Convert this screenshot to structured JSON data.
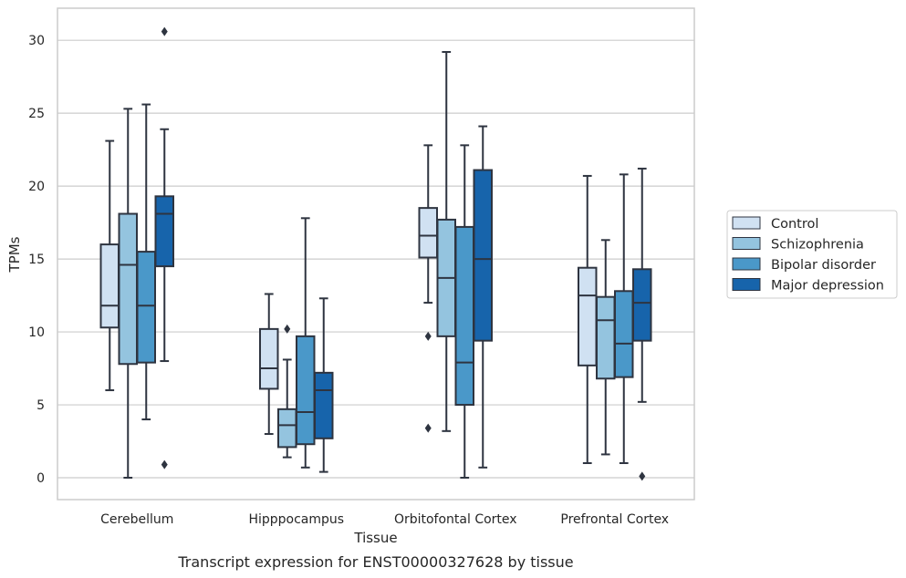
{
  "chart_data": {
    "type": "box",
    "xlabel": "Tissue",
    "ylabel": "TPMs",
    "caption": "Transcript expression for ENST00000327628 by tissue",
    "ylim": [
      -1.5,
      32.2
    ],
    "yticks": [
      0,
      5,
      10,
      15,
      20,
      25,
      30
    ],
    "grid": "horizontal",
    "legend_position": "right",
    "categories": [
      "Cerebellum",
      "Hipppocampus",
      "Orbitofontal Cortex",
      "Prefrontal Cortex"
    ],
    "series": [
      {
        "name": "Control",
        "color": "#d0e1f2",
        "boxes": [
          {
            "whislo": 6.0,
            "q1": 10.3,
            "med": 11.8,
            "q3": 16.0,
            "whishi": 23.1,
            "fliers": []
          },
          {
            "whislo": 3.0,
            "q1": 6.1,
            "med": 7.5,
            "q3": 10.2,
            "whishi": 12.6,
            "fliers": []
          },
          {
            "whislo": 12.0,
            "q1": 15.1,
            "med": 16.6,
            "q3": 18.5,
            "whishi": 22.8,
            "fliers": [
              9.7,
              3.4
            ]
          },
          {
            "whislo": 1.0,
            "q1": 7.7,
            "med": 12.5,
            "q3": 14.4,
            "whishi": 20.7,
            "fliers": []
          }
        ]
      },
      {
        "name": "Schizophrenia",
        "color": "#94c4df",
        "boxes": [
          {
            "whislo": 0.0,
            "q1": 7.8,
            "med": 14.6,
            "q3": 18.1,
            "whishi": 25.3,
            "fliers": []
          },
          {
            "whislo": 1.4,
            "q1": 2.1,
            "med": 3.6,
            "q3": 4.7,
            "whishi": 8.1,
            "fliers": [
              10.2
            ]
          },
          {
            "whislo": 3.2,
            "q1": 9.7,
            "med": 13.7,
            "q3": 17.7,
            "whishi": 29.2,
            "fliers": []
          },
          {
            "whislo": 1.6,
            "q1": 6.8,
            "med": 10.8,
            "q3": 12.4,
            "whishi": 16.3,
            "fliers": []
          }
        ]
      },
      {
        "name": "Bipolar disorder",
        "color": "#4a98c9",
        "boxes": [
          {
            "whislo": 4.0,
            "q1": 7.9,
            "med": 11.8,
            "q3": 15.5,
            "whishi": 25.6,
            "fliers": []
          },
          {
            "whislo": 0.7,
            "q1": 2.3,
            "med": 4.5,
            "q3": 9.7,
            "whishi": 17.8,
            "fliers": []
          },
          {
            "whislo": 0.0,
            "q1": 5.0,
            "med": 7.9,
            "q3": 17.2,
            "whishi": 22.8,
            "fliers": []
          },
          {
            "whislo": 1.0,
            "q1": 6.9,
            "med": 9.2,
            "q3": 12.8,
            "whishi": 20.8,
            "fliers": []
          }
        ]
      },
      {
        "name": "Major depression",
        "color": "#1764ab",
        "boxes": [
          {
            "whislo": 8.0,
            "q1": 14.5,
            "med": 18.1,
            "q3": 19.3,
            "whishi": 23.9,
            "fliers": [
              30.6,
              0.9
            ]
          },
          {
            "whislo": 0.4,
            "q1": 2.7,
            "med": 6.0,
            "q3": 7.2,
            "whishi": 12.3,
            "fliers": []
          },
          {
            "whislo": 0.7,
            "q1": 9.4,
            "med": 15.0,
            "q3": 21.1,
            "whishi": 24.1,
            "fliers": []
          },
          {
            "whislo": 5.2,
            "q1": 9.4,
            "med": 12.0,
            "q3": 14.3,
            "whishi": 21.2,
            "fliers": [
              0.1
            ]
          }
        ]
      }
    ],
    "styles": {
      "line_color": "#2e3440",
      "grid_color": "#cccccc",
      "frame_color": "#cccccc"
    }
  }
}
